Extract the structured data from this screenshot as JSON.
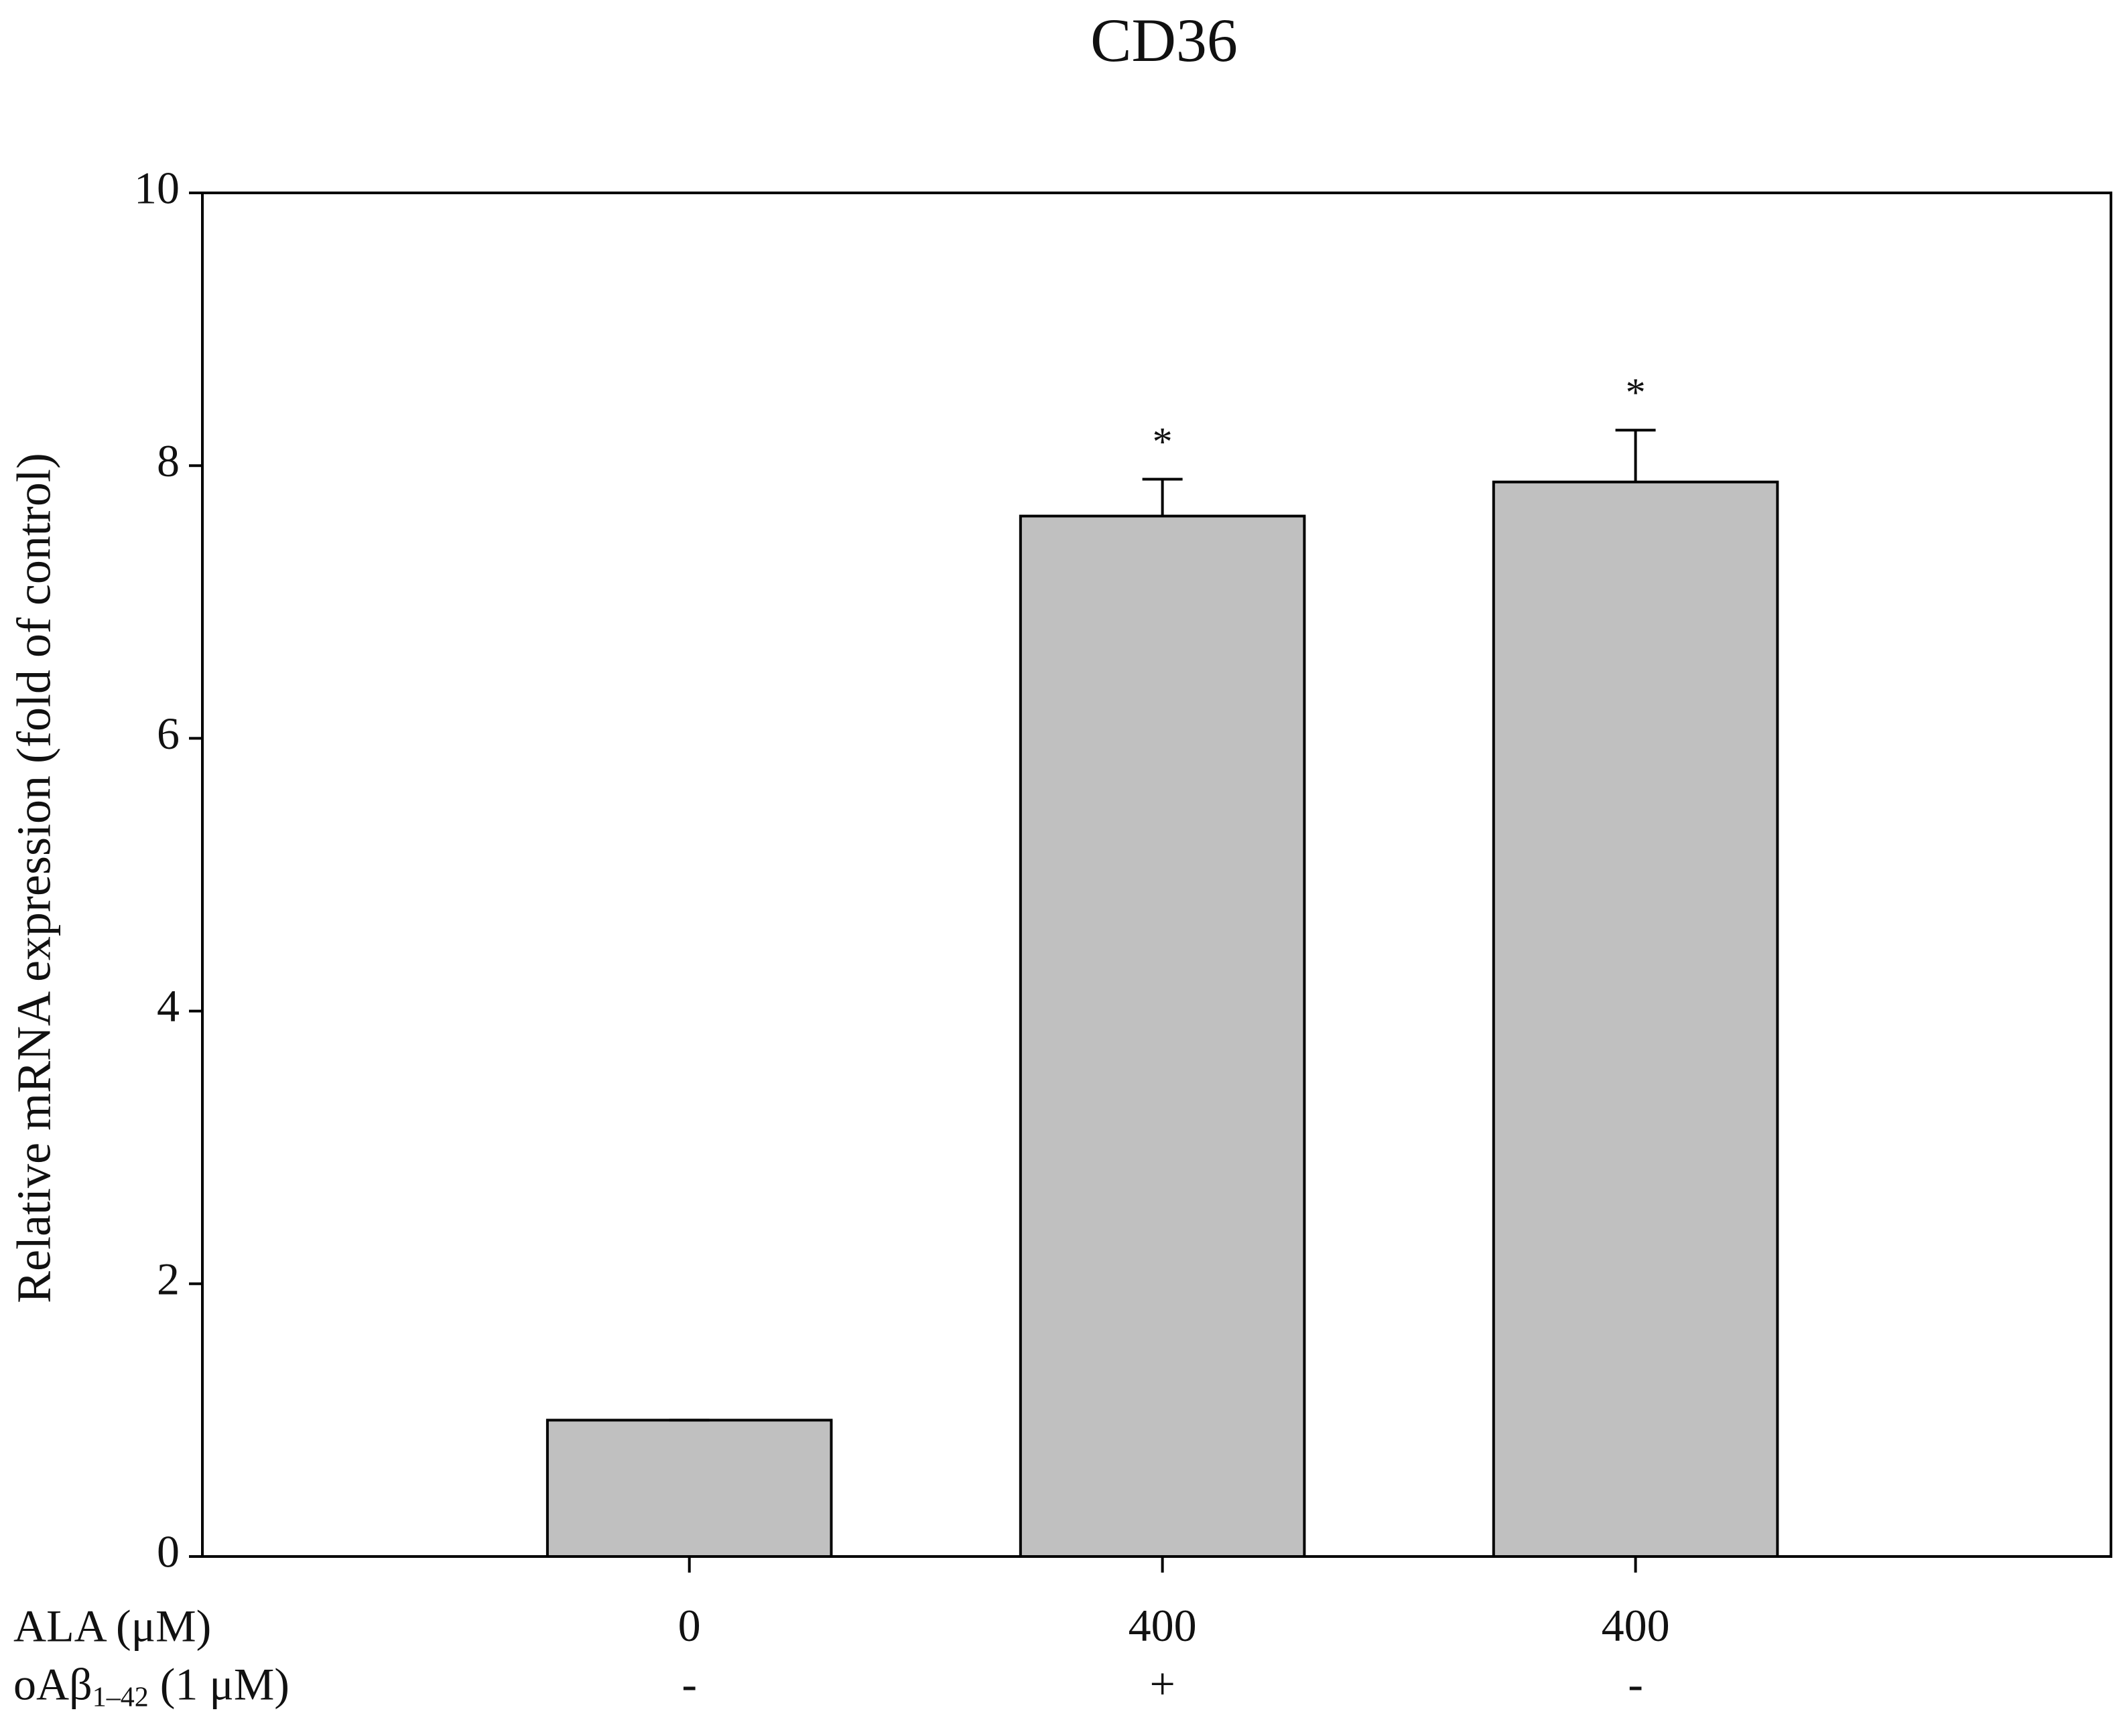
{
  "chart_data": {
    "type": "bar",
    "title": "CD36",
    "y_label": "Relative mRNA expression (fold of control)",
    "row_labels": [
      [
        "ALA (μM)"
      ],
      [
        "oAβ",
        "1–42",
        " (1 μM)"
      ]
    ],
    "categories": [
      "0",
      "400",
      "400"
    ],
    "categories2": [
      "-",
      "+",
      "-"
    ],
    "values": [
      1.0,
      7.63,
      7.88
    ],
    "errors": [
      0,
      0.27,
      0.38
    ],
    "significance": [
      null,
      "*",
      "*"
    ],
    "color": "#c0c0c0",
    "ylim": [
      0,
      10
    ],
    "yticks": [
      0,
      2,
      4,
      6,
      8,
      10
    ]
  }
}
